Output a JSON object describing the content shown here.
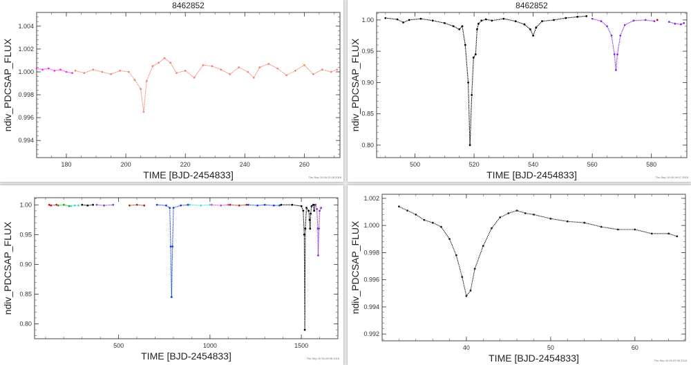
{
  "chart_data": [
    {
      "type": "scatter",
      "title": "8462852",
      "xlabel": "TIME [BJD-2454833]",
      "ylabel": "ndiv_PDCSAP_FLUX",
      "xlim": [
        170,
        272
      ],
      "ylim": [
        0.9925,
        1.0052
      ],
      "xticks": [
        180,
        200,
        220,
        240,
        260
      ],
      "yticks": [
        0.994,
        0.996,
        0.998,
        1.0,
        1.002,
        1.004
      ],
      "ytick_labels": [
        "0.994",
        "0.996",
        "0.998",
        "1.000",
        "1.002",
        "1.004"
      ],
      "stamp": "Thu Sep 10 00:12:18 2015",
      "series": [
        {
          "color": "#ff2cf0",
          "x": [
            170,
            172,
            174,
            176,
            178,
            180,
            182
          ],
          "y": [
            1.0003,
            1.0002,
            1.0003,
            1.0001,
            1.0002,
            1.0,
            0.9999
          ]
        },
        {
          "color": "#f08a70",
          "x": [
            183,
            186,
            189,
            192,
            195,
            198,
            201,
            203,
            205,
            206,
            207,
            209,
            211,
            213,
            215,
            217,
            220,
            223,
            226,
            229,
            232,
            235,
            238,
            241,
            243,
            245,
            248,
            251,
            254,
            257,
            260,
            263,
            266,
            269,
            271
          ],
          "y": [
            1.0001,
            0.9999,
            1.0002,
            1.0,
            0.9998,
            1.0001,
            1.0,
            0.9993,
            0.9985,
            0.9965,
            0.9992,
            1.0005,
            1.0008,
            1.0012,
            1.0008,
            0.9999,
            1.0001,
            0.9995,
            1.0006,
            1.0005,
            1.0002,
            0.9998,
            1.0004,
            1.0,
            0.9995,
            1.0004,
            1.0007,
            1.0003,
            0.9997,
            1.0001,
            1.0006,
            0.9998,
            1.0002,
            1.0,
            1.0002
          ]
        }
      ]
    },
    {
      "type": "scatter",
      "title": "8462852",
      "xlabel": "TIME [BJD-2454833]",
      "ylabel": "ndiv_PDCSAP_FLUX",
      "xlim": [
        487,
        592
      ],
      "ylim": [
        0.78,
        1.012
      ],
      "xticks": [
        500,
        520,
        540,
        560,
        580
      ],
      "yticks": [
        0.8,
        0.85,
        0.9,
        0.95,
        1.0
      ],
      "ytick_labels": [
        "0.80",
        "0.85",
        "0.90",
        "0.95",
        "1.00"
      ],
      "stamp": "Thu Sep 10 00:19:07 2015",
      "series": [
        {
          "color": "#000000",
          "x": [
            490,
            494,
            496,
            498,
            502,
            506,
            510,
            513,
            515,
            516,
            517,
            518,
            518.6,
            519.2,
            519.8,
            520.5,
            521,
            521.5,
            522.5,
            524,
            526,
            530,
            534,
            537,
            539,
            540,
            541,
            543,
            547,
            551,
            555,
            558
          ],
          "y": [
            1.003,
            1.001,
            0.996,
            1.0,
            1.002,
            0.999,
            0.995,
            0.99,
            0.985,
            0.99,
            0.96,
            0.9,
            0.8,
            0.88,
            0.94,
            0.945,
            0.985,
            0.994,
            0.999,
            1.001,
            0.999,
            1.002,
            0.998,
            0.993,
            0.985,
            0.975,
            0.988,
            0.998,
            1.0,
            1.003,
            1.005,
            1.006
          ]
        },
        {
          "color": "#8a2be2",
          "x": [
            560,
            563,
            565,
            566.5,
            567.5,
            568,
            568.5,
            569.5,
            571,
            574,
            578,
            581
          ],
          "y": [
            1.002,
            0.998,
            0.99,
            0.975,
            0.945,
            0.92,
            0.945,
            0.975,
            0.992,
            0.999,
            1.0,
            0.998
          ]
        },
        {
          "color": "#b00000",
          "x": [
            582
          ],
          "y": [
            1.0
          ]
        },
        {
          "color": "#8a2be2",
          "x": [
            586,
            588,
            590,
            591
          ],
          "y": [
            0.997,
            0.994,
            0.993,
            0.995
          ]
        }
      ]
    },
    {
      "type": "scatter",
      "title": "",
      "xlabel": "TIME [BJD-2454833]",
      "ylabel": "ndiv_PDCSAP_FLUX",
      "xlim": [
        40,
        1700
      ],
      "ylim": [
        0.775,
        1.012
      ],
      "xticks": [
        500,
        1000,
        1500
      ],
      "yticks": [
        0.8,
        0.85,
        0.9,
        0.95,
        1.0
      ],
      "ytick_labels": [
        "0.80",
        "0.85",
        "0.90",
        "0.95",
        "1.00"
      ],
      "stamp": "Thu Sep 10 00:29:35 2015",
      "series": [
        {
          "color": "#d01010",
          "x": [
            120,
            130,
            160
          ],
          "y": [
            1.0,
            0.999,
            1.0
          ]
        },
        {
          "color": "#20b020",
          "x": [
            170,
            200,
            230
          ],
          "y": [
            0.999,
            1.0,
            0.998
          ]
        },
        {
          "color": "#40e0d0",
          "x": [
            240,
            260,
            280
          ],
          "y": [
            0.998,
            0.999,
            0.999
          ]
        },
        {
          "color": "#000000",
          "x": [
            300,
            330,
            360
          ],
          "y": [
            1.0,
            0.999,
            1.0
          ]
        },
        {
          "color": "#9040c0",
          "x": [
            380,
            420,
            470
          ],
          "y": [
            1.0,
            0.999,
            1.0
          ]
        },
        {
          "color": "#a03010",
          "x": [
            560,
            600,
            640
          ],
          "y": [
            0.999,
            1.0,
            0.999
          ]
        },
        {
          "color": "#1040e0",
          "x": [
            710,
            760,
            780,
            785,
            790,
            795,
            800,
            840,
            880
          ],
          "y": [
            1.0,
            0.999,
            0.995,
            0.93,
            0.845,
            0.93,
            0.995,
            0.999,
            1.0
          ]
        },
        {
          "color": "#40e0d0",
          "x": [
            890,
            950,
            1000
          ],
          "y": [
            1.0,
            0.999,
            1.0
          ]
        },
        {
          "color": "#e040e0",
          "x": [
            1010,
            1060,
            1100
          ],
          "y": [
            1.0,
            0.999,
            1.0
          ]
        },
        {
          "color": "#b02010",
          "x": [
            1110,
            1160,
            1200
          ],
          "y": [
            1.0,
            0.999,
            1.0
          ]
        },
        {
          "color": "#1040e0",
          "x": [
            1210,
            1260,
            1300,
            1350,
            1380
          ],
          "y": [
            1.0,
            0.999,
            1.0,
            0.999,
            0.999
          ]
        },
        {
          "color": "#000000",
          "x": [
            1390,
            1450,
            1500,
            1510,
            1516,
            1519,
            1522,
            1528,
            1540,
            1545,
            1548,
            1551,
            1556,
            1565,
            1570,
            1575
          ],
          "y": [
            1.0,
            1.0,
            0.998,
            0.99,
            0.95,
            0.79,
            0.96,
            0.995,
            0.99,
            0.975,
            0.96,
            0.985,
            0.998,
            1.0,
            0.99,
            1.0
          ]
        },
        {
          "color": "#9030d0",
          "x": [
            1578,
            1585,
            1590,
            1592,
            1596,
            1600,
            1608
          ],
          "y": [
            1.0,
            0.993,
            0.96,
            0.915,
            0.96,
            0.99,
            0.995
          ]
        }
      ]
    },
    {
      "type": "scatter",
      "title": "",
      "xlabel": "TIME [BJD-2454833]",
      "ylabel": "ndiv_PDCSAP_FLUX",
      "xlim": [
        30,
        66
      ],
      "ylim": [
        0.9915,
        1.0023
      ],
      "xticks": [
        40,
        50,
        60
      ],
      "yticks": [
        0.992,
        0.994,
        0.996,
        0.998,
        1.0,
        1.002
      ],
      "ytick_labels": [
        "0.992",
        "0.994",
        "0.996",
        "0.998",
        "1.000",
        "1.002"
      ],
      "stamp": "Thu Sep 10 00:37:05 2015",
      "series": [
        {
          "color": "#222222",
          "x": [
            32,
            33,
            34,
            35,
            36,
            37,
            38,
            38.8,
            39.5,
            40,
            40.5,
            41,
            42,
            43,
            44,
            45,
            46,
            47,
            48,
            50,
            52,
            54,
            56,
            58,
            60,
            62,
            64,
            65
          ],
          "y": [
            1.0014,
            1.0011,
            1.0008,
            1.0004,
            1.0002,
            0.9999,
            0.999,
            0.9978,
            0.9962,
            0.9948,
            0.9952,
            0.9968,
            0.9985,
            0.9998,
            1.0006,
            1.0009,
            1.0011,
            1.0009,
            1.0008,
            1.0005,
            1.0003,
            1.0002,
            0.9999,
            0.9997,
            0.9997,
            0.9994,
            0.9994,
            0.9992
          ]
        }
      ]
    }
  ]
}
